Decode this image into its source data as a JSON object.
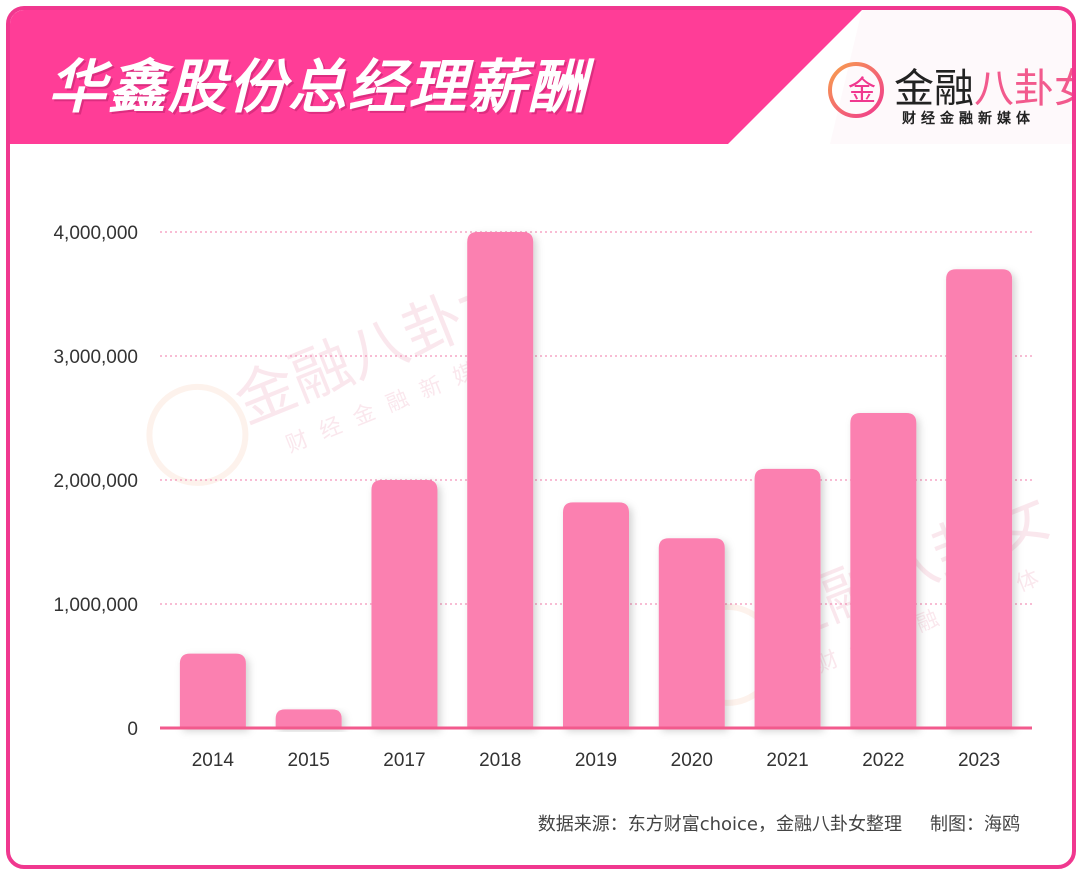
{
  "title": "华鑫股份总经理薪酬",
  "logo": {
    "mark": "金",
    "name_main": "金融",
    "name_accent": "八卦女",
    "subtitle": "财经金融新媒体"
  },
  "watermark": {
    "name": "金融八卦女",
    "subtitle": "财经金融新媒体"
  },
  "source": {
    "data_source": "数据来源：东方财富choice，金融八卦女整理",
    "made_by": "制图：海鸥"
  },
  "colors": {
    "frame": "#f0388f",
    "header": "#ff3d97",
    "bar": "#fb80b0",
    "grid": "#f07aa8",
    "axis": "#f25a8d"
  },
  "chart_data": {
    "type": "bar",
    "title": "华鑫股份总经理薪酬",
    "xlabel": "",
    "ylabel": "",
    "categories": [
      "2014",
      "2015",
      "2017",
      "2018",
      "2019",
      "2020",
      "2021",
      "2022",
      "2023"
    ],
    "values": [
      600000,
      150000,
      2000000,
      4000000,
      1820000,
      1530000,
      2090000,
      2540000,
      3700000
    ],
    "ylim": [
      0,
      4000000
    ],
    "yticks": [
      0,
      1000000,
      2000000,
      3000000,
      4000000
    ],
    "ytick_labels": [
      "0",
      "1,000,000",
      "2,000,000",
      "3,000,000",
      "4,000,000"
    ],
    "grid": true,
    "legend": "none"
  }
}
